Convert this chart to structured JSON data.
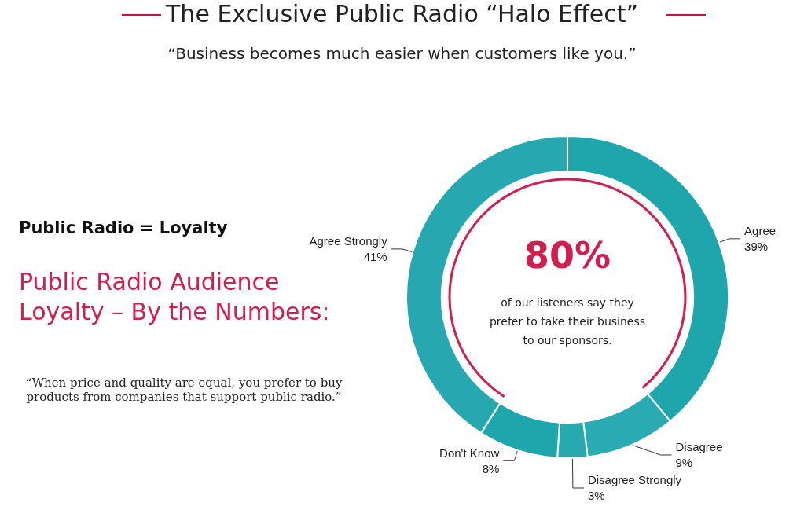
{
  "chart_data": {
    "type": "donut",
    "title": "The Exclusive Public Radio “Halo Effect”",
    "subtitle": "“Business becomes much easier when customers like you.”",
    "categories": [
      "Agree",
      "Disagree",
      "Disagree Strongly",
      "Don't Know",
      "Agree Strongly"
    ],
    "values": [
      39,
      9,
      3,
      8,
      41
    ],
    "value_labels": [
      "39%",
      "9%",
      "3%",
      "8%",
      "41%"
    ],
    "colors": [
      "#1fa6ad",
      "#2aaab2",
      "#28a9b0",
      "#1fa6ad",
      "#27a8b0"
    ],
    "legend": false,
    "annotations": [
      "Public Radio = Loyalty",
      "Public Radio Audience Loyalty – By the Numbers:",
      "“When price and quality are equal, you prefer to buy products from companies that support public radio.”",
      "80%",
      "of our listeners say they prefer to take their business to our sponsors."
    ]
  }
}
